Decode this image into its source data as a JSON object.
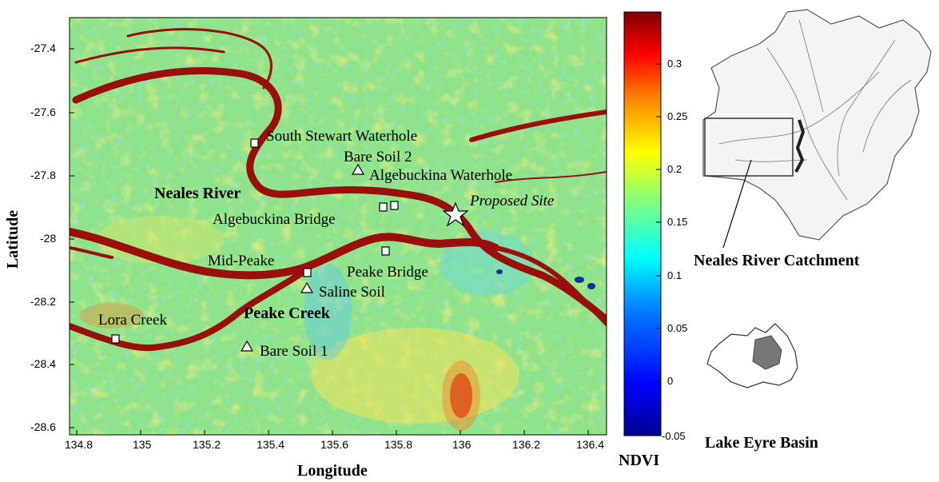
{
  "map": {
    "x_axis": {
      "title": "Longitude",
      "ticks": [
        "134.8",
        "135",
        "135.2",
        "135.4",
        "135.6",
        "135.8",
        "136",
        "136.2",
        "136.4"
      ]
    },
    "y_axis": {
      "title": "Latitude",
      "ticks": [
        "-27.4",
        "-27.6",
        "-27.8",
        "-28",
        "-28.2",
        "-28.4",
        "-28.6"
      ]
    },
    "regions": {
      "neales_river": "Neales River",
      "peake_creek": "Peake Creek"
    },
    "sites": {
      "south_stewart": "South Stewart Waterhole",
      "bare_soil_2": "Bare Soil 2",
      "algebuckina_waterhole": "Algebuckina Waterhole",
      "proposed_site": "Proposed Site",
      "algebuckina_bridge": "Algebuckina Bridge",
      "mid_peake": "Mid-Peake",
      "peake_bridge": "Peake Bridge",
      "saline_soil": "Saline Soil",
      "lora_creek": "Lora Creek",
      "bare_soil_1": "Bare Soil 1"
    }
  },
  "colorbar": {
    "title": "NDVI",
    "ticks": [
      "0.3",
      "0.25",
      "0.2",
      "0.15",
      "0.1",
      "0.05",
      "0",
      "-0.05"
    ],
    "colormap": [
      "#00008f",
      "#0000ff",
      "#0080ff",
      "#00ffff",
      "#80ff80",
      "#ffff00",
      "#ff8000",
      "#ff0000",
      "#800000"
    ]
  },
  "insets": {
    "catchment_title": "Neales River Catchment",
    "basin_title": "Lake Eyre Basin"
  }
}
